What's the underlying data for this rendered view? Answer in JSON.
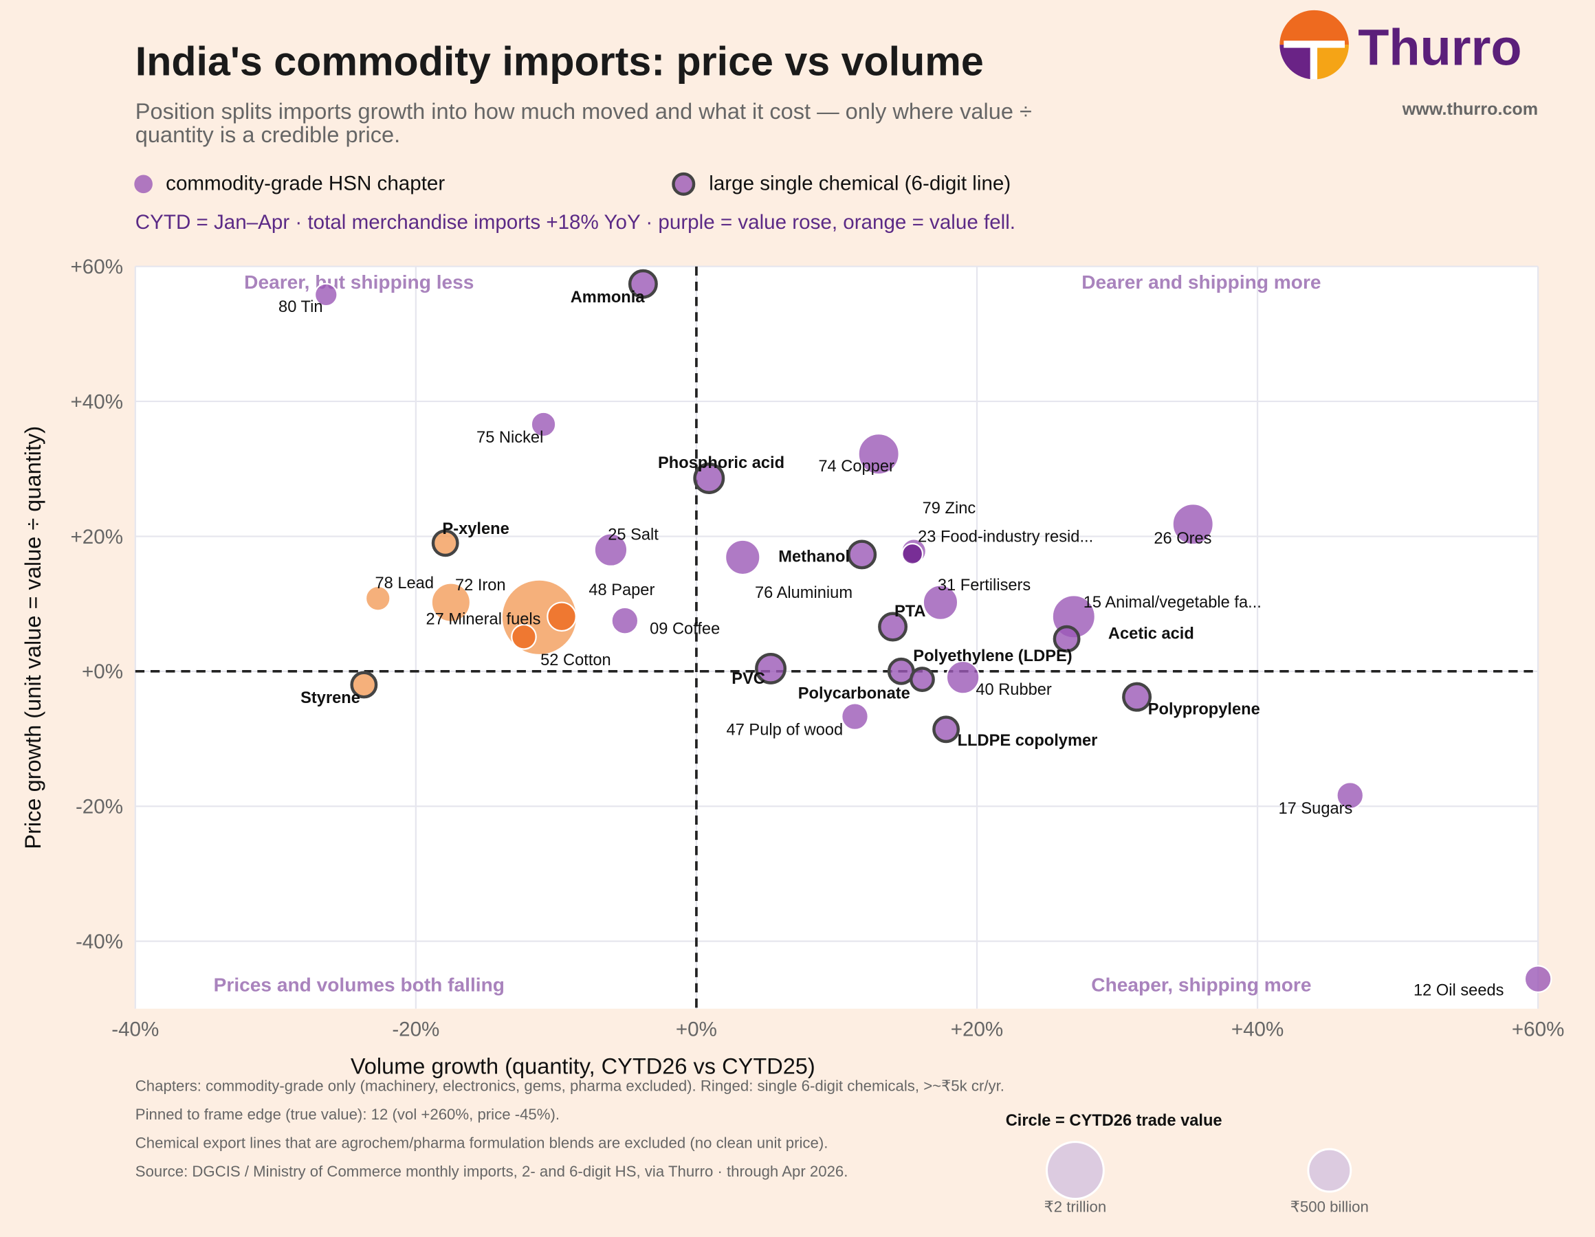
{
  "header": {
    "title": "India's commodity imports: price vs volume",
    "subtitle": [
      "Position splits imports growth into how much moved and what it cost — only where value ÷",
      "quantity is a credible price."
    ],
    "logo_text": "Thurro",
    "website": "www.thurro.com"
  },
  "chart_data": {
    "type": "scatter",
    "note": "CYTD = Jan–Apr · total merchandise imports +18% YoY · purple = value rose, orange = value fell.",
    "xlabel": "Volume growth  (quantity, CYTD26 vs CYTD25)",
    "ylabel": "Price growth  (unit value = value ÷ quantity)",
    "xlim": [
      -40,
      60
    ],
    "ylim": [
      -50,
      60
    ],
    "xticks": [
      {
        "value": -40,
        "label": "-40%"
      },
      {
        "value": -20,
        "label": "-20%"
      },
      {
        "value": 0,
        "label": "+0%"
      },
      {
        "value": 20,
        "label": "+20%"
      },
      {
        "value": 40,
        "label": "+40%"
      },
      {
        "value": 60,
        "label": "+60%"
      }
    ],
    "yticks": [
      {
        "value": -40,
        "label": "-40%"
      },
      {
        "value": -20,
        "label": "-20%"
      },
      {
        "value": 0,
        "label": "+0%"
      },
      {
        "value": 20,
        "label": "+20%"
      },
      {
        "value": 40,
        "label": "+40%"
      },
      {
        "value": 60,
        "label": "+60%"
      }
    ],
    "grid": true,
    "quadrant_labels": [
      "Dearer, but shipping less",
      "Dearer and shipping more",
      "Prices and volumes both falling",
      "Cheaper, shipping more"
    ],
    "series": [
      {
        "name": "commodity-grade HSN chapter",
        "color": "#9b59b6",
        "labels": [
          "80 Tin",
          "75 Nickel",
          "74 Copper",
          "26 Ores",
          "79 Zinc",
          "23 Food-industry resid...",
          "76 Aluminium",
          "25 Salt",
          "78 Lead",
          "72 Iron",
          "27 Mineral fuels",
          "48 Paper",
          "09 Coffee",
          "52 Cotton",
          "31 Fertilisers",
          "15 Animal/vegetable fa...",
          "40 Rubber",
          "47 Pulp of wood",
          "17 Sugars",
          "12 Oil seeds"
        ],
        "x": [
          -26.4,
          -10.9,
          13.0,
          35.4,
          15.4,
          15.5,
          3.3,
          -6.1,
          -22.7,
          -17.5,
          -11.2,
          -9.6,
          -5.1,
          -12.3,
          17.4,
          26.9,
          19.0,
          11.3,
          46.6,
          60
        ],
        "y": [
          55.8,
          36.6,
          32.2,
          21.8,
          17.4,
          17.8,
          16.9,
          18.0,
          10.8,
          10.2,
          8.0,
          8.1,
          7.5,
          5.1,
          10.2,
          8.1,
          -0.9,
          -6.7,
          -18.4,
          -45.6
        ],
        "sizes": [
          23,
          35,
          400,
          400,
          15,
          35,
          186,
          140,
          35,
          316,
          7500,
          74,
          52,
          35,
          186,
          508,
          140,
          52,
          52,
          52
        ],
        "colors": [
          "#9b59b6",
          "#9b59b6",
          "#9b59b6",
          "#9b59b6",
          "#6a1b8a",
          "#9b59b6",
          "#9b59b6",
          "#9b59b6",
          "#f39c5a",
          "#f39c5a",
          "#f39c5a",
          "#ee6a1f",
          "#9b59b6",
          "#ee6a1f",
          "#9b59b6",
          "#9b59b6",
          "#9b59b6",
          "#9b59b6",
          "#9b59b6",
          "#9b59b6"
        ]
      },
      {
        "name": "large single chemical (6-digit line)",
        "color": "#9b59b6",
        "ring_color": "#444444",
        "labels": [
          "Ammonia",
          "Phosphoric acid",
          "Methanol",
          "P-xylene",
          "PTA",
          "Acetic acid",
          "PVC",
          "Polyethylene (LDPE)",
          "Polycarbonate",
          "Polypropylene",
          "LLDPE copolymer",
          "Styrene"
        ],
        "x": [
          -3.8,
          0.9,
          11.8,
          -17.9,
          14.0,
          26.4,
          5.3,
          14.6,
          16.1,
          31.4,
          17.8,
          -23.7
        ],
        "y": [
          57.4,
          28.6,
          17.3,
          19.0,
          6.6,
          4.8,
          0.4,
          0.0,
          -1.2,
          -3.8,
          -8.6,
          -2.0
        ],
        "sizes": [
          52,
          74,
          52,
          35,
          52,
          35,
          74,
          35,
          23,
          52,
          35,
          35
        ],
        "colors": [
          "#9b59b6",
          "#9b59b6",
          "#9b59b6",
          "#f39c5a",
          "#9b59b6",
          "#9b59b6",
          "#9b59b6",
          "#9b59b6",
          "#9b59b6",
          "#9b59b6",
          "#9b59b6",
          "#f39c5a"
        ]
      }
    ]
  },
  "footnotes": [
    "Chapters: commodity-grade only (machinery, electronics, gems, pharma excluded). Ringed: single 6-digit chemicals, >~₹5k cr/yr.",
    "Pinned to frame edge (true value): 12 (vol +260%, price -45%).",
    "Chemical export lines that are agrochem/pharma formulation blends are excluded (no clean unit price).",
    "Source: DGCIS / Ministry of Commerce monthly imports, 2- and 6-digit HS, via Thurro · through Apr 2026."
  ],
  "size_legend": {
    "title": "Circle = CYTD26 trade value",
    "color": "#dccbe0",
    "items": [
      {
        "value": 2000,
        "label": "₹2 trillion"
      },
      {
        "value": 500,
        "label": "₹500 billion"
      }
    ]
  }
}
